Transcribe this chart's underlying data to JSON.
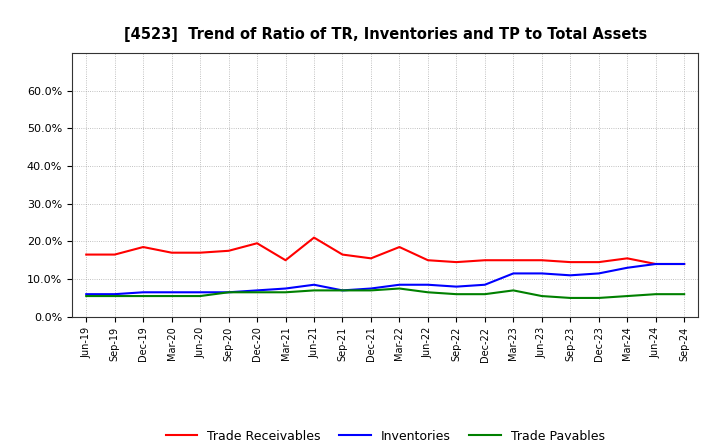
{
  "title": "[4523]  Trend of Ratio of TR, Inventories and TP to Total Assets",
  "x_labels": [
    "Jun-19",
    "Sep-19",
    "Dec-19",
    "Mar-20",
    "Jun-20",
    "Sep-20",
    "Dec-20",
    "Mar-21",
    "Jun-21",
    "Sep-21",
    "Dec-21",
    "Mar-22",
    "Jun-22",
    "Sep-22",
    "Dec-22",
    "Mar-23",
    "Jun-23",
    "Sep-23",
    "Dec-23",
    "Mar-24",
    "Jun-24",
    "Sep-24"
  ],
  "trade_receivables": [
    16.5,
    16.5,
    18.5,
    17.0,
    17.0,
    17.5,
    19.5,
    15.0,
    21.0,
    16.5,
    15.5,
    18.5,
    15.0,
    14.5,
    15.0,
    15.0,
    15.0,
    14.5,
    14.5,
    15.5,
    14.0,
    14.0
  ],
  "inventories": [
    6.0,
    6.0,
    6.5,
    6.5,
    6.5,
    6.5,
    7.0,
    7.5,
    8.5,
    7.0,
    7.5,
    8.5,
    8.5,
    8.0,
    8.5,
    11.5,
    11.5,
    11.0,
    11.5,
    13.0,
    14.0,
    14.0
  ],
  "trade_payables": [
    5.5,
    5.5,
    5.5,
    5.5,
    5.5,
    6.5,
    6.5,
    6.5,
    7.0,
    7.0,
    7.0,
    7.5,
    6.5,
    6.0,
    6.0,
    7.0,
    5.5,
    5.0,
    5.0,
    5.5,
    6.0,
    6.0
  ],
  "tr_color": "#FF0000",
  "inv_color": "#0000FF",
  "tp_color": "#008000",
  "ylim": [
    0,
    70
  ],
  "yticks": [
    0,
    10,
    20,
    30,
    40,
    50,
    60
  ],
  "ytick_labels": [
    "0.0%",
    "10.0%",
    "20.0%",
    "30.0%",
    "40.0%",
    "50.0%",
    "60.0%"
  ],
  "background_color": "#FFFFFF",
  "grid_color": "#999999",
  "legend_labels": [
    "Trade Receivables",
    "Inventories",
    "Trade Payables"
  ]
}
